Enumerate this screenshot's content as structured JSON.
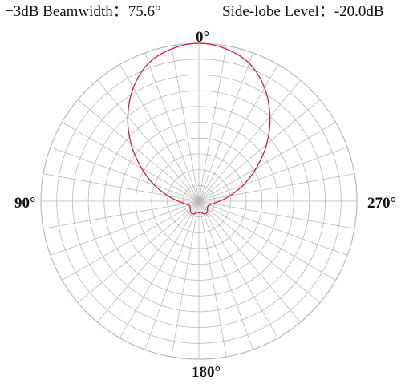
{
  "header": {
    "beamwidth_label": "−3dB Beamwidth：",
    "beamwidth_value": "75.6°",
    "sidelobe_label": "Side-lobe Level：",
    "sidelobe_value": "-20.0dB"
  },
  "colors": {
    "pattern": "#d62033",
    "grid": "#b9b9b9",
    "text": "#111111"
  },
  "chart_data": {
    "type": "polar-line",
    "title": "",
    "angle_labels": [
      "0°",
      "90°",
      "180°",
      "270°"
    ],
    "angle_direction": "counterclockwise",
    "zero_location": "top",
    "angular_grid_step_deg": 10,
    "radial_rings": 10,
    "radial_range": [
      0,
      1
    ],
    "grid": true,
    "series": [
      {
        "angles_deg": [
          0,
          10,
          20,
          30,
          40,
          50,
          60,
          70,
          80,
          90,
          100,
          110,
          120,
          130,
          140,
          150,
          160,
          170,
          180,
          190,
          200,
          210,
          220,
          230,
          240,
          250,
          260,
          270,
          280,
          290,
          300,
          310,
          320,
          330,
          340,
          350,
          360
        ],
        "values": [
          1.0,
          0.98,
          0.93,
          0.83,
          0.7,
          0.56,
          0.42,
          0.3,
          0.2,
          0.13,
          0.09,
          0.07,
          0.065,
          0.07,
          0.085,
          0.09,
          0.085,
          0.07,
          0.075,
          0.07,
          0.085,
          0.09,
          0.085,
          0.07,
          0.065,
          0.07,
          0.09,
          0.13,
          0.2,
          0.3,
          0.42,
          0.56,
          0.7,
          0.83,
          0.93,
          0.98,
          1.0
        ]
      }
    ]
  }
}
